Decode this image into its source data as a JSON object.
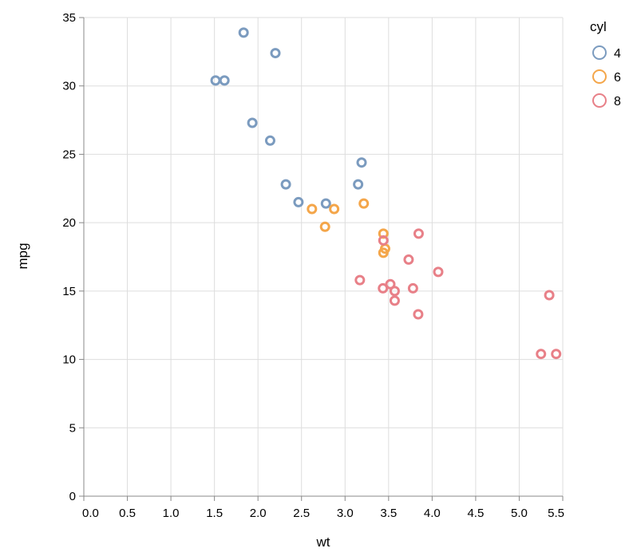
{
  "chart_data": {
    "type": "scatter",
    "xlabel": "wt",
    "ylabel": "mpg",
    "xlim": [
      0,
      5.5
    ],
    "ylim": [
      0,
      35
    ],
    "x_ticks": [
      0,
      0.5,
      1,
      1.5,
      2,
      2.5,
      3,
      3.5,
      4,
      4.5,
      5,
      5.5
    ],
    "x_tick_labels": [
      "0.0",
      "0.5",
      "1.0",
      "1.5",
      "2.0",
      "2.5",
      "3.0",
      "3.5",
      "4.0",
      "4.5",
      "5.0",
      "5.5"
    ],
    "y_ticks": [
      0,
      5,
      10,
      15,
      20,
      25,
      30,
      35
    ],
    "y_tick_labels": [
      "0",
      "5",
      "10",
      "15",
      "20",
      "25",
      "30",
      "35"
    ],
    "grid": true,
    "legend": {
      "title": "cyl",
      "placement": "top-right",
      "entries": [
        {
          "label": "4",
          "color": "#7b9bbf"
        },
        {
          "label": "6",
          "color": "#f4a64a"
        },
        {
          "label": "8",
          "color": "#e88088"
        }
      ]
    },
    "series": [
      {
        "name": "4",
        "color": "#7b9bbf",
        "points": [
          {
            "x": 1.513,
            "y": 30.4
          },
          {
            "x": 1.615,
            "y": 30.4
          },
          {
            "x": 1.835,
            "y": 33.9
          },
          {
            "x": 2.2,
            "y": 32.4
          },
          {
            "x": 1.935,
            "y": 27.3
          },
          {
            "x": 2.14,
            "y": 26.0
          },
          {
            "x": 2.32,
            "y": 22.8
          },
          {
            "x": 2.465,
            "y": 21.5
          },
          {
            "x": 2.78,
            "y": 21.4
          },
          {
            "x": 3.15,
            "y": 22.8
          },
          {
            "x": 3.19,
            "y": 24.4
          }
        ]
      },
      {
        "name": "6",
        "color": "#f4a64a",
        "points": [
          {
            "x": 2.62,
            "y": 21.0
          },
          {
            "x": 2.875,
            "y": 21.0
          },
          {
            "x": 2.77,
            "y": 19.7
          },
          {
            "x": 3.215,
            "y": 21.4
          },
          {
            "x": 3.44,
            "y": 19.2
          },
          {
            "x": 3.44,
            "y": 17.8
          },
          {
            "x": 3.46,
            "y": 18.1
          }
        ]
      },
      {
        "name": "8",
        "color": "#e88088",
        "points": [
          {
            "x": 3.44,
            "y": 18.7
          },
          {
            "x": 3.845,
            "y": 19.2
          },
          {
            "x": 3.73,
            "y": 17.3
          },
          {
            "x": 4.07,
            "y": 16.4
          },
          {
            "x": 3.17,
            "y": 15.8
          },
          {
            "x": 3.435,
            "y": 15.2
          },
          {
            "x": 3.52,
            "y": 15.5
          },
          {
            "x": 3.57,
            "y": 15.0
          },
          {
            "x": 3.78,
            "y": 15.2
          },
          {
            "x": 3.57,
            "y": 14.3
          },
          {
            "x": 3.84,
            "y": 13.3
          },
          {
            "x": 5.345,
            "y": 14.7
          },
          {
            "x": 5.25,
            "y": 10.4
          },
          {
            "x": 5.424,
            "y": 10.4
          }
        ]
      }
    ]
  }
}
